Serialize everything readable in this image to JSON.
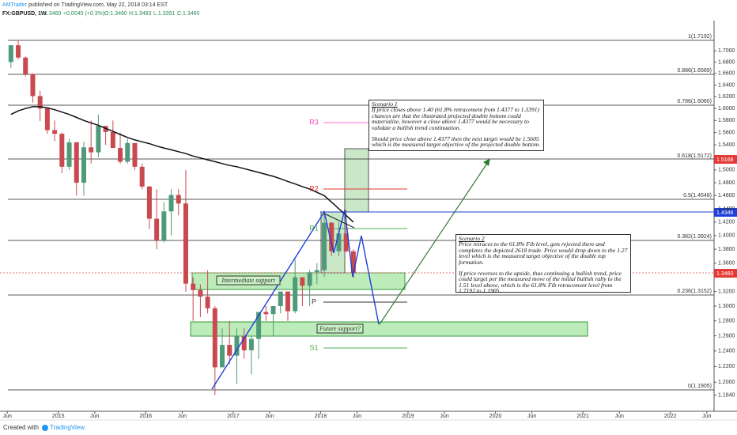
{
  "header": {
    "author": "AMTrader",
    "published": "published on TradingView.com, May 22, 2018 03:14 EST",
    "symbol": "FX:GBPUSD, 1W",
    "last": "1.3460",
    "change": "+0.0040 (+0.3%)",
    "open": "O:1.3460",
    "high": "H:1.3483",
    "low": "L:1.3391",
    "close": "C:1.3460"
  },
  "chart_data": {
    "type": "candlestick",
    "x": [
      "2014-06",
      "2014-07",
      "2014-08",
      "2014-09",
      "2014-10",
      "2014-11",
      "2014-12",
      "2015-01",
      "2015-02",
      "2015-03",
      "2015-04",
      "2015-05",
      "2015-06",
      "2015-07",
      "2015-08",
      "2015-09",
      "2015-10",
      "2015-11",
      "2015-12",
      "2016-01",
      "2016-02",
      "2016-03",
      "2016-04",
      "2016-05",
      "2016-06",
      "2016-07",
      "2016-08",
      "2016-09",
      "2016-10",
      "2016-11",
      "2016-12",
      "2017-01",
      "2017-02",
      "2017-03",
      "2017-04",
      "2017-05",
      "2017-06",
      "2017-07",
      "2017-08",
      "2017-09",
      "2017-10",
      "2017-11",
      "2017-12",
      "2018-01",
      "2018-02",
      "2018-03",
      "2018-04",
      "2018-05"
    ],
    "open": [
      1.68,
      1.71,
      1.688,
      1.659,
      1.621,
      1.6,
      1.564,
      1.558,
      1.505,
      1.544,
      1.48,
      1.536,
      1.528,
      1.571,
      1.561,
      1.535,
      1.513,
      1.543,
      1.505,
      1.474,
      1.425,
      1.393,
      1.436,
      1.461,
      1.448,
      1.331,
      1.322,
      1.313,
      1.297,
      1.219,
      1.248,
      1.234,
      1.259,
      1.241,
      1.256,
      1.292,
      1.289,
      1.3,
      1.32,
      1.293,
      1.34,
      1.328,
      1.347,
      1.35,
      1.419,
      1.377,
      1.403,
      1.377
    ],
    "high": [
      1.71,
      1.7192,
      1.69,
      1.66,
      1.63,
      1.6,
      1.58,
      1.56,
      1.55,
      1.545,
      1.545,
      1.58,
      1.59,
      1.57,
      1.58,
      1.56,
      1.55,
      1.54,
      1.51,
      1.475,
      1.47,
      1.45,
      1.47,
      1.47,
      1.5,
      1.34,
      1.33,
      1.35,
      1.3,
      1.27,
      1.28,
      1.27,
      1.27,
      1.26,
      1.29,
      1.3,
      1.3,
      1.32,
      1.32,
      1.365,
      1.34,
      1.35,
      1.36,
      1.437,
      1.42,
      1.42,
      1.4377,
      1.38
    ],
    "low": [
      1.67,
      1.685,
      1.655,
      1.61,
      1.579,
      1.558,
      1.546,
      1.495,
      1.5,
      1.46,
      1.46,
      1.51,
      1.52,
      1.54,
      1.535,
      1.51,
      1.51,
      1.5,
      1.47,
      1.41,
      1.38,
      1.39,
      1.4,
      1.43,
      1.32,
      1.28,
      1.285,
      1.29,
      1.184,
      1.22,
      1.223,
      1.198,
      1.23,
      1.21,
      1.23,
      1.28,
      1.26,
      1.29,
      1.28,
      1.29,
      1.3,
      1.3,
      1.33,
      1.34,
      1.37,
      1.37,
      1.376,
      1.3391
    ],
    "close": [
      1.71,
      1.688,
      1.659,
      1.621,
      1.6,
      1.564,
      1.558,
      1.505,
      1.544,
      1.48,
      1.536,
      1.528,
      1.571,
      1.561,
      1.535,
      1.513,
      1.543,
      1.505,
      1.474,
      1.425,
      1.393,
      1.436,
      1.461,
      1.448,
      1.331,
      1.322,
      1.313,
      1.297,
      1.219,
      1.248,
      1.234,
      1.259,
      1.241,
      1.256,
      1.292,
      1.289,
      1.3,
      1.32,
      1.293,
      1.34,
      1.328,
      1.347,
      1.35,
      1.419,
      1.377,
      1.403,
      1.377,
      1.346
    ],
    "up_color": "#4f9a7a",
    "down_color": "#c9494f",
    "moving_average": {
      "color": "#111111",
      "values": [
        1.59,
        1.596,
        1.6,
        1.603,
        1.603,
        1.601,
        1.598,
        1.594,
        1.59,
        1.585,
        1.58,
        1.576,
        1.572,
        1.567,
        1.562,
        1.557,
        1.552,
        1.548,
        1.545,
        1.542,
        1.538,
        1.535,
        1.532,
        1.529,
        1.526,
        1.522,
        1.519,
        1.516,
        1.513,
        1.51,
        1.507,
        1.505,
        1.502,
        1.499,
        1.496,
        1.493,
        1.49,
        1.486,
        1.482,
        1.478,
        1.474,
        1.47,
        1.465,
        1.46,
        1.45,
        1.44,
        1.43,
        1.42
      ]
    },
    "ylim": [
      1.162,
      1.752
    ],
    "log": true,
    "yticks": [
      {
        "value": 1.184,
        "label": "1.1840"
      },
      {
        "value": 1.2,
        "label": "1.2000"
      },
      {
        "value": 1.22,
        "label": "1.2200"
      },
      {
        "value": 1.24,
        "label": "1.2400"
      },
      {
        "value": 1.26,
        "label": "1.2600"
      },
      {
        "value": 1.28,
        "label": "1.2800"
      },
      {
        "value": 1.3,
        "label": "1.3000"
      },
      {
        "value": 1.32,
        "label": "1.3200"
      },
      {
        "value": 1.36,
        "label": "1.3600"
      },
      {
        "value": 1.38,
        "label": "1.3800"
      },
      {
        "value": 1.4,
        "label": "1.4000"
      },
      {
        "value": 1.42,
        "label": "1.4200"
      },
      {
        "value": 1.44,
        "label": "1.4400"
      },
      {
        "value": 1.46,
        "label": "1.4600"
      },
      {
        "value": 1.48,
        "label": "1.4800"
      },
      {
        "value": 1.5,
        "label": "1.5000"
      },
      {
        "value": 1.54,
        "label": "1.5400"
      },
      {
        "value": 1.56,
        "label": "1.5600"
      },
      {
        "value": 1.58,
        "label": "1.5800"
      },
      {
        "value": 1.6,
        "label": "1.6000"
      },
      {
        "value": 1.62,
        "label": "1.6200"
      },
      {
        "value": 1.64,
        "label": "1.6400"
      },
      {
        "value": 1.66,
        "label": "1.6600"
      },
      {
        "value": 1.68,
        "label": "1.6800"
      },
      {
        "value": 1.7,
        "label": "1.7000"
      }
    ],
    "xlim": [
      "2014-05",
      "2022-07"
    ],
    "xticks": [
      {
        "value": "2014-06",
        "label": "Jun"
      },
      {
        "value": "2015-01",
        "label": "2015"
      },
      {
        "value": "2015-06",
        "label": "Jun"
      },
      {
        "value": "2016-01",
        "label": "2016"
      },
      {
        "value": "2016-06",
        "label": "Jun"
      },
      {
        "value": "2017-01",
        "label": "2017"
      },
      {
        "value": "2017-06",
        "label": "Jun"
      },
      {
        "value": "2018-01",
        "label": "2018"
      },
      {
        "value": "2018-06",
        "label": "Jun"
      },
      {
        "value": "2019-01",
        "label": "2019"
      },
      {
        "value": "2019-06",
        "label": "Jun"
      },
      {
        "value": "2020-01",
        "label": "2020"
      },
      {
        "value": "2020-06",
        "label": "Jun"
      },
      {
        "value": "2021-01",
        "label": "2021"
      },
      {
        "value": "2021-06",
        "label": "Jun"
      },
      {
        "value": "2022-01",
        "label": "2022"
      },
      {
        "value": "2022-06",
        "label": "Jun"
      }
    ]
  },
  "drawings": {
    "fib_levels": [
      "1(1.7192)",
      "0.886(1.6589)",
      "0.786(1.6060)",
      "0.618(1.5172)",
      "0.5(1.4548)",
      "0.382(1.3924)",
      "0.236(1.3152)",
      "0(1.1905)"
    ],
    "pivots": [
      "R3",
      "R2",
      "R1",
      "P",
      "S1"
    ],
    "price_tags": [
      "1.5168",
      "1.4346",
      "1.3460"
    ],
    "zones": [
      "Intermediate support",
      "Future support?"
    ],
    "scenario_1": {
      "title": "Scenario 1",
      "paragraphs": [
        "If price closes above 1.40 (61.8% retracement from 1.4377 to 1.3391) chances are that the illustrated projected double bottom could materialize, however a close above 1.4377 would be necessary to validate a bullish trend continuation.",
        "Should price close above 1.4377 then the next target would be 1.5605 which is the measured target objective of the projected double bottom."
      ]
    },
    "scenario_2": {
      "title": "Scenario 2",
      "paragraphs": [
        "Price retraces to the 61.8% Fib level, gets rejected there and completes the depicted 2618 trade. Price would drop down to the 1.27 level which is the measured target objective of the double top formation.",
        "If price reverses to the upside, thus continuing a bullish trend, price could target per the measured move of the initial bullish rally to the 1.51 level above, which is the 61.8% Fib retracement level from 1.7192 to 1.1905."
      ]
    }
  },
  "footer": {
    "created": "Created with",
    "brand": "TradingView"
  }
}
